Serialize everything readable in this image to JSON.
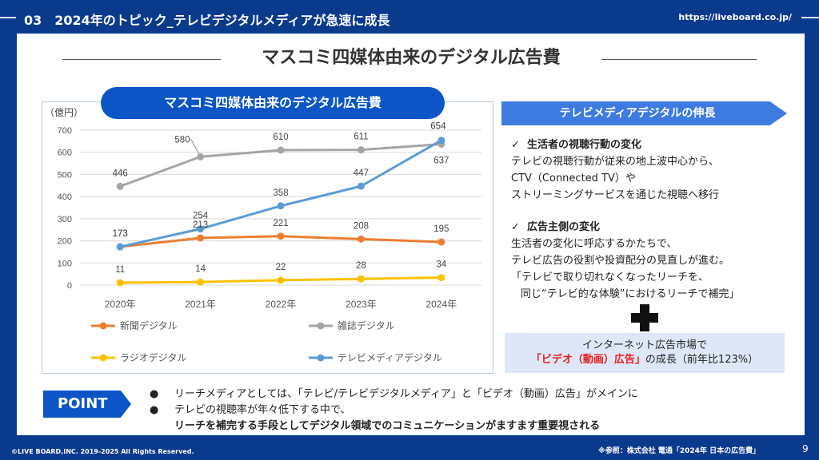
{
  "header": {
    "section_title": "03　2024年のトピック_テレビデジタルメディアが急速に成長",
    "url": "https://liveboard.co.jp/"
  },
  "main_title": "マスコミ四媒体由来のデジタル広告費",
  "chart_data": {
    "type": "line",
    "title": "マスコミ四媒体由来のデジタル広告費",
    "ylabel": "（億円）",
    "ylim": [
      0,
      700
    ],
    "yticks": [
      "0",
      "100",
      "200",
      "300",
      "400",
      "500",
      "600",
      "700"
    ],
    "categories": [
      "2020年",
      "2021年",
      "2022年",
      "2023年",
      "2024年"
    ],
    "grid": true,
    "legend_position": "bottom",
    "series": [
      {
        "name": "新聞デジタル",
        "color": "#ed7d31",
        "values": [
          173,
          213,
          221,
          208,
          195
        ]
      },
      {
        "name": "雑誌デジタル",
        "color": "#a5a5a5",
        "values": [
          446,
          580,
          610,
          611,
          637
        ]
      },
      {
        "name": "ラジオデジタル",
        "color": "#ffc000",
        "values": [
          11,
          14,
          22,
          28,
          34
        ]
      },
      {
        "name": "テレビメディアデジタル",
        "color": "#5b9bd5",
        "values": [
          173,
          254,
          358,
          447,
          654
        ]
      }
    ]
  },
  "right_panel": {
    "header": "テレビメディアデジタルの伸長",
    "check_mark": "✓",
    "section1": {
      "heading": "生活者の視聴行動の変化",
      "lines": [
        "テレビの視聴行動が従来の地上波中心から、",
        "CTV（Connected TV）や",
        "ストリーミングサービスを通じた視聴へ移行"
      ]
    },
    "section2": {
      "heading": "広告主側の変化",
      "lines": [
        "生活者の変化に呼応するかたちで、",
        "テレビ広告の役割や投資配分の見直しが進む。",
        "「テレビで取り切れなくなったリーチを、",
        "同じ“テレビ的な体験”におけるリーチで補完」"
      ]
    },
    "market": {
      "line1": "インターネット広告市場で",
      "highlight": "「ビデオ（動画）広告」",
      "rest": "の成長（前年比123%）"
    }
  },
  "point": {
    "label": "POINT",
    "bullet": "●",
    "bullet1": "リーチメディアとしては、「テレビ/テレビデジタルメディア」と「ビデオ（動画）広告」がメインに",
    "bullet2": "テレビの視聴率が年々低下する中で、",
    "bullet2_bold": "リーチを補完する手段としてデジタル領域でのコミュニケーションがますます重要視される"
  },
  "footer": {
    "copyright": "©LIVE BOARD,INC. 2019-2025 All Rights Reserved.",
    "reference": "※参照：株式会社 電通「2024年 日本の広告費」",
    "page": "9"
  }
}
